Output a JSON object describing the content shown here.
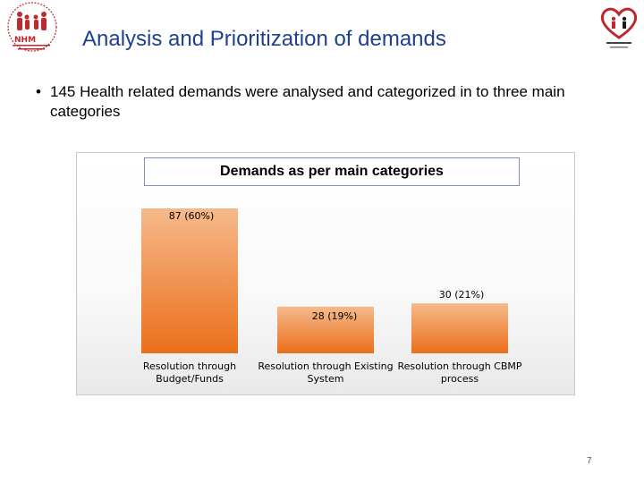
{
  "slide": {
    "title": "Analysis and Prioritization of demands",
    "bullet": "145 Health related demands were analysed and categorized in to three main categories",
    "page_number": "7"
  },
  "logos": {
    "left": {
      "text": "NHM",
      "icon": "nhm-family-logo"
    },
    "right": {
      "icon": "heart-people-logo"
    }
  },
  "colors": {
    "title": "#1f3f8f",
    "bar_top": "#f6b98c",
    "bar_bottom": "#ea6f1a"
  },
  "chart_data": {
    "type": "bar",
    "title": "Demands as per main categories",
    "categories": [
      [
        "Resolution through",
        "Budget/Funds"
      ],
      [
        "Resolution through Existing",
        "System"
      ],
      [
        "Resolution through CBMP",
        "process"
      ]
    ],
    "values": [
      87,
      28,
      30
    ],
    "data_labels": [
      "87 (60%)",
      "28 (19%)",
      "30 (21%)"
    ],
    "ylim": [
      0,
      87
    ],
    "grid": false,
    "legend": "none"
  }
}
